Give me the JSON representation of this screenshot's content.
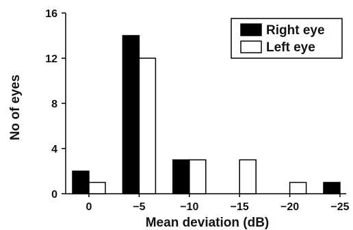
{
  "chart_data": {
    "type": "bar",
    "title": "",
    "xlabel": "Mean deviation (dB)",
    "ylabel": "No of eyes",
    "categories": [
      "0",
      "−5",
      "−10",
      "−15",
      "−20",
      "−25"
    ],
    "series": [
      {
        "name": "Right eye",
        "values": [
          2,
          14,
          3,
          0,
          0,
          1
        ],
        "color": "#000000",
        "fill": "solid"
      },
      {
        "name": "Left eye",
        "values": [
          1,
          12,
          3,
          3,
          1,
          0
        ],
        "color": "#ffffff",
        "fill": "outline"
      }
    ],
    "ylim": [
      0,
      16
    ],
    "yticks": [
      "0",
      "4",
      "8",
      "12",
      "16"
    ],
    "grid": false,
    "legend_position": "top-right"
  }
}
